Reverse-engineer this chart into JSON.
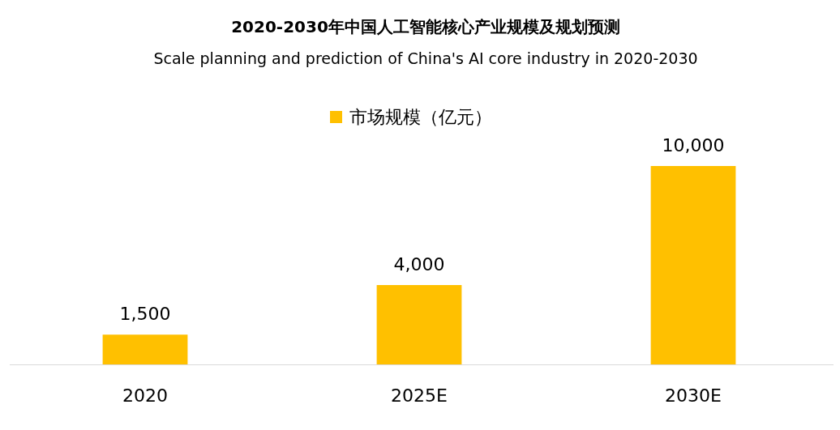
{
  "chart_data": {
    "type": "bar",
    "title": "2020-2030年中国人工智能核心产业规模及规划预测",
    "subtitle": "Scale planning and prediction of China's AI core industry in 2020-2030",
    "categories": [
      "2020",
      "2025E",
      "2030E"
    ],
    "series": [
      {
        "name": "市场规模（亿元）",
        "color": "#ffc000",
        "values": [
          1500,
          4000,
          10000
        ],
        "value_labels": [
          "1,500",
          "4,000",
          "10,000"
        ]
      }
    ],
    "legend": "top"
  }
}
